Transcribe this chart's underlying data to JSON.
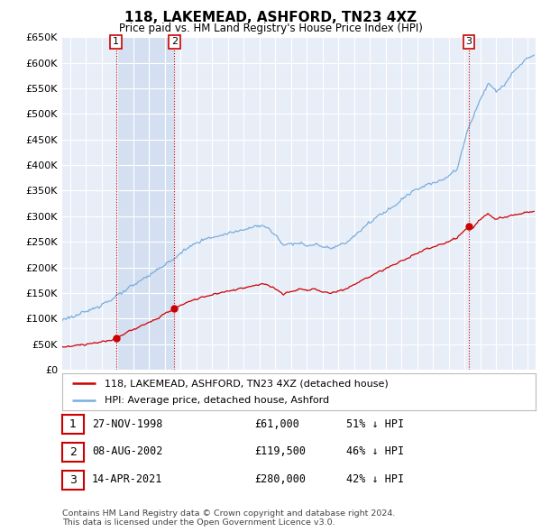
{
  "title": "118, LAKEMEAD, ASHFORD, TN23 4XZ",
  "subtitle": "Price paid vs. HM Land Registry's House Price Index (HPI)",
  "ylim": [
    0,
    650000
  ],
  "yticks": [
    0,
    50000,
    100000,
    150000,
    200000,
    250000,
    300000,
    350000,
    400000,
    450000,
    500000,
    550000,
    600000,
    650000
  ],
  "xlim_start": 1995.5,
  "xlim_end": 2025.5,
  "background_color": "#ffffff",
  "plot_bg_color": "#e8eef8",
  "grid_color": "#ffffff",
  "sale_points": [
    {
      "date_num": 1998.91,
      "price": 61000,
      "label": "1"
    },
    {
      "date_num": 2002.6,
      "price": 119500,
      "label": "2"
    },
    {
      "date_num": 2021.28,
      "price": 280000,
      "label": "3"
    }
  ],
  "vline_dates": [
    1998.91,
    2002.6,
    2021.28
  ],
  "vline_color": "#cc0000",
  "sale_line_color": "#cc0000",
  "hpi_line_color": "#7aaddc",
  "legend_sale_label": "118, LAKEMEAD, ASHFORD, TN23 4XZ (detached house)",
  "legend_hpi_label": "HPI: Average price, detached house, Ashford",
  "table_rows": [
    {
      "num": "1",
      "date": "27-NOV-1998",
      "price": "£61,000",
      "pct": "51% ↓ HPI"
    },
    {
      "num": "2",
      "date": "08-AUG-2002",
      "price": "£119,500",
      "pct": "46% ↓ HPI"
    },
    {
      "num": "3",
      "date": "14-APR-2021",
      "price": "£280,000",
      "pct": "42% ↓ HPI"
    }
  ],
  "footer": "Contains HM Land Registry data © Crown copyright and database right 2024.\nThis data is licensed under the Open Government Licence v3.0.",
  "number_box_color": "#cc0000",
  "shaded_region_color": "#d0ddf0"
}
